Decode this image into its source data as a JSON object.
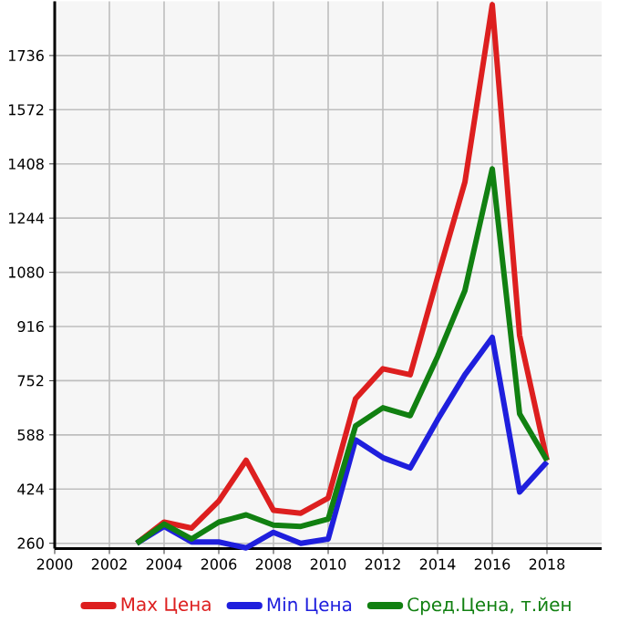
{
  "chart_data": {
    "type": "line",
    "x": [
      2003,
      2004,
      2005,
      2006,
      2007,
      2008,
      2009,
      2010,
      2011,
      2012,
      2013,
      2014,
      2015,
      2016,
      2017,
      2018
    ],
    "series": [
      {
        "name": "Max Цена",
        "color": "#dd1f1f",
        "values": [
          260,
          324,
          306,
          388,
          511,
          360,
          351,
          397,
          697,
          788,
          770,
          1065,
          1353,
          1890,
          889,
          511
        ]
      },
      {
        "name": "Min Цена",
        "color": "#1f1fdd",
        "values": [
          260,
          311,
          264,
          264,
          246,
          293,
          260,
          273,
          573,
          519,
          488,
          634,
          770,
          883,
          415,
          506
        ]
      },
      {
        "name": "Сред.Цена, т.йен",
        "color": "#118011",
        "values": [
          260,
          318,
          273,
          324,
          346,
          315,
          311,
          333,
          615,
          670,
          646,
          825,
          1025,
          1393,
          652,
          511
        ]
      }
    ],
    "xlim": [
      2000,
      2020
    ],
    "ylim": [
      244,
      1900
    ],
    "xticks": [
      2000,
      2002,
      2004,
      2006,
      2008,
      2010,
      2012,
      2014,
      2016,
      2018
    ],
    "yticks": [
      260,
      424,
      588,
      752,
      916,
      1080,
      1244,
      1408,
      1572,
      1736
    ],
    "grid": true,
    "legend": "bottom",
    "line_style": "solid",
    "marker": "none"
  }
}
